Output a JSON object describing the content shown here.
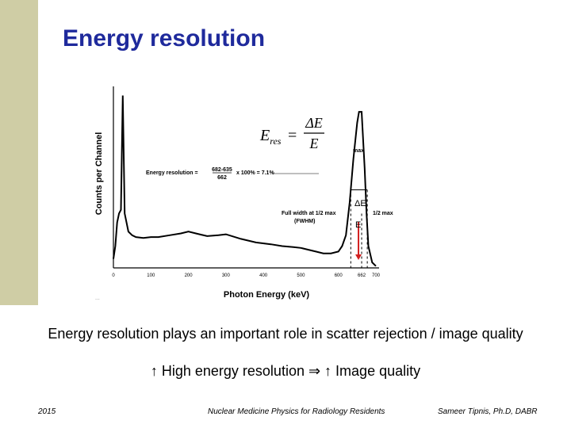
{
  "slide": {
    "title": "Energy resolution",
    "body_line_1": "Energy resolution plays an important role in scatter rejection / image quality",
    "body_line_2": "↑ High energy resolution ⇒ ↑ Image quality",
    "footer_left": "2015",
    "footer_center": "Nuclear Medicine Physics for Radiology Residents",
    "footer_right": "Sameer Tipnis, Ph.D, DABR"
  },
  "figure": {
    "formula_lhs": "E",
    "formula_lhs_sub": "res",
    "formula_eq": "=",
    "formula_numerator": "ΔE",
    "formula_denominator": "E",
    "calc_label": "Energy resolution =",
    "calc_numerator": "682-635",
    "calc_denominator": "662",
    "calc_result": "x 100% = 7.1%",
    "max_label": "max",
    "fwhm_left_line1": "Full width at 1/2 max",
    "fwhm_left_line2": "(FWHM)",
    "half_max_label": "1/2 max",
    "delta_e_label": "ΔE",
    "e_label": "E"
  },
  "chart_data": {
    "type": "line",
    "title": "",
    "xlabel": "Photon Energy (keV)",
    "ylabel": "Counts per Channel",
    "xlim": [
      0,
      700
    ],
    "x_ticks": [
      "0",
      "100",
      "200",
      "300",
      "400",
      "500",
      "600",
      "662",
      "700"
    ],
    "series": [
      {
        "x": [
          0,
          5,
          10,
          15,
          20,
          25,
          30,
          40,
          50,
          60,
          80,
          100,
          120,
          150,
          180,
          200,
          220,
          250,
          280,
          300,
          340,
          380,
          420,
          450,
          480,
          500,
          520,
          540,
          560,
          580,
          600,
          610,
          620,
          630,
          640,
          650,
          655,
          662,
          670,
          675,
          680,
          690,
          700
        ],
        "y": [
          5,
          12,
          25,
          30,
          32,
          95,
          30,
          20,
          18,
          17,
          16.5,
          17,
          17,
          18,
          19,
          20,
          19,
          17.5,
          18,
          18.5,
          16,
          14,
          13,
          12,
          11.5,
          11,
          10,
          9,
          8,
          8,
          9,
          12,
          18,
          36,
          60,
          80,
          86,
          86,
          55,
          30,
          12,
          3,
          1
        ]
      }
    ],
    "annotations": [
      "max",
      "Full width at 1/2 max (FWHM)",
      "1/2 max",
      "ΔE",
      "E"
    ]
  }
}
